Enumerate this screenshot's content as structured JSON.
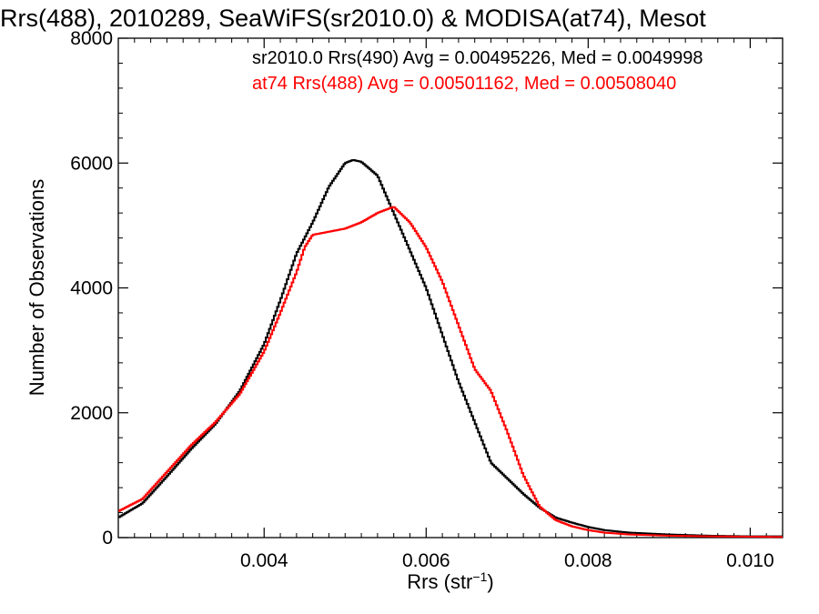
{
  "chart_data": {
    "type": "line",
    "step": true,
    "title": "Rrs(488), 2010289, SeaWiFS(sr2010.0) & MODISA(at74), Mesot",
    "xlabel_main": "Rrs (str",
    "xlabel_sup": "−1",
    "xlabel_end": ")",
    "ylabel": "Number of Observations",
    "xlim": [
      0.0022,
      0.0104
    ],
    "ylim": [
      0,
      8000
    ],
    "xticks": [
      0.004,
      0.006,
      0.008,
      0.01
    ],
    "xtick_labels": [
      "0.004",
      "0.006",
      "0.008",
      "0.010"
    ],
    "yticks": [
      0,
      2000,
      4000,
      6000,
      8000
    ],
    "ytick_labels": [
      "0",
      "2000",
      "4000",
      "6000",
      "8000"
    ],
    "grid": false,
    "legend_position": "top-right",
    "legend": [
      "sr2010.0 Rrs(490) Avg = 0.00495226, Med = 0.0049998",
      "at74 Rrs(488) Avg = 0.00501162, Med = 0.00508040"
    ],
    "series": [
      {
        "color": "#000000",
        "x": [
          0.0022,
          0.0025,
          0.0028,
          0.0031,
          0.0034,
          0.0037,
          0.004,
          0.0042,
          0.0044,
          0.0046,
          0.0048,
          0.005,
          0.0051,
          0.0052,
          0.0054,
          0.0056,
          0.0058,
          0.006,
          0.0062,
          0.0064,
          0.0066,
          0.0068,
          0.007,
          0.0072,
          0.0074,
          0.0076,
          0.0078,
          0.008,
          0.0082,
          0.0085,
          0.009,
          0.0095,
          0.01,
          0.0104
        ],
        "y": [
          320,
          550,
          980,
          1420,
          1820,
          2350,
          3100,
          3800,
          4550,
          5050,
          5620,
          6000,
          6050,
          6020,
          5800,
          5200,
          4600,
          4000,
          3250,
          2500,
          1850,
          1200,
          950,
          700,
          480,
          320,
          240,
          170,
          120,
          80,
          50,
          30,
          20,
          20
        ]
      },
      {
        "color": "#ff0000",
        "x": [
          0.0022,
          0.0025,
          0.0028,
          0.0031,
          0.0034,
          0.0037,
          0.004,
          0.0042,
          0.0044,
          0.0045,
          0.0046,
          0.0048,
          0.005,
          0.0052,
          0.0054,
          0.0056,
          0.0058,
          0.006,
          0.0062,
          0.0064,
          0.0066,
          0.0068,
          0.007,
          0.0072,
          0.0074,
          0.0076,
          0.0078,
          0.008,
          0.0082,
          0.0085,
          0.009,
          0.0095,
          0.01,
          0.0104
        ],
        "y": [
          420,
          620,
          1050,
          1480,
          1850,
          2300,
          2980,
          3600,
          4250,
          4650,
          4850,
          4900,
          4950,
          5050,
          5200,
          5300,
          5050,
          4650,
          4100,
          3400,
          2700,
          2350,
          1700,
          1000,
          500,
          280,
          180,
          120,
          80,
          50,
          30,
          20,
          15,
          10
        ]
      }
    ]
  }
}
